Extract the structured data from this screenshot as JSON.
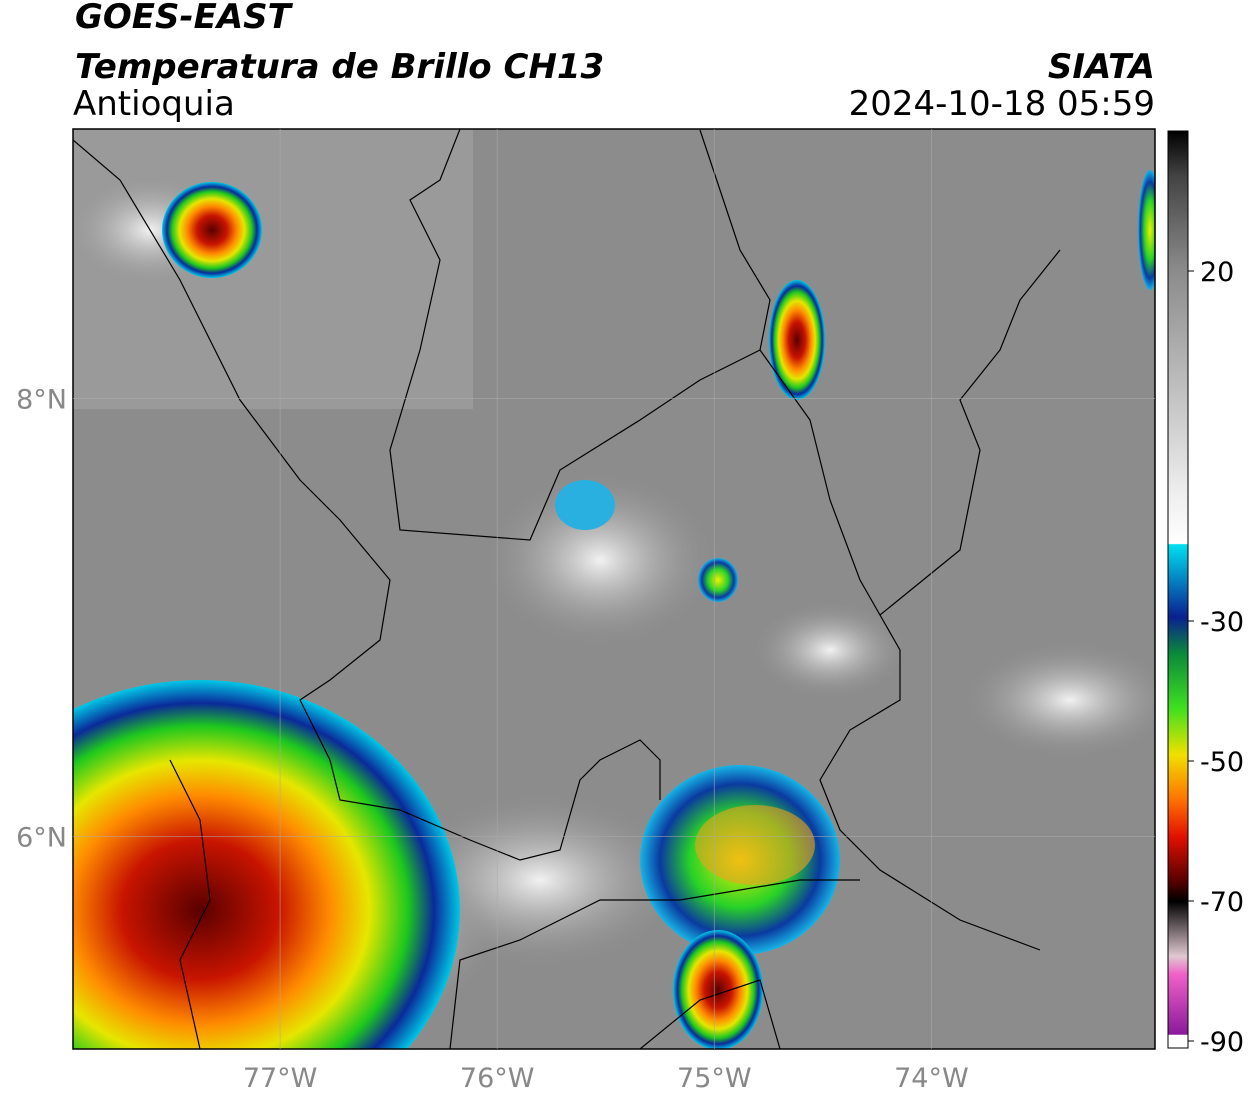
{
  "header": {
    "title": "GOES-EAST",
    "subtitle": "Temperatura de Brillo CH13",
    "region": "Antioquia",
    "source": "SIATA",
    "datetime": "2024-10-18 05:59"
  },
  "map": {
    "xlim": [
      -77.954,
      -72.97
    ],
    "ylim": [
      5.03,
      9.23
    ],
    "xticks": [
      {
        "value": -77,
        "label": "77°W"
      },
      {
        "value": -76,
        "label": "76°W"
      },
      {
        "value": -75,
        "label": "75°W"
      },
      {
        "value": -74,
        "label": "74°W"
      }
    ],
    "yticks": [
      {
        "value": 6,
        "label": "6°N"
      },
      {
        "value": 8,
        "label": "8°N"
      }
    ],
    "grid": true
  },
  "colorbar": {
    "lim": [
      -91,
      40
    ],
    "ticks": [
      20,
      -30,
      -50,
      -70,
      -90
    ]
  }
}
